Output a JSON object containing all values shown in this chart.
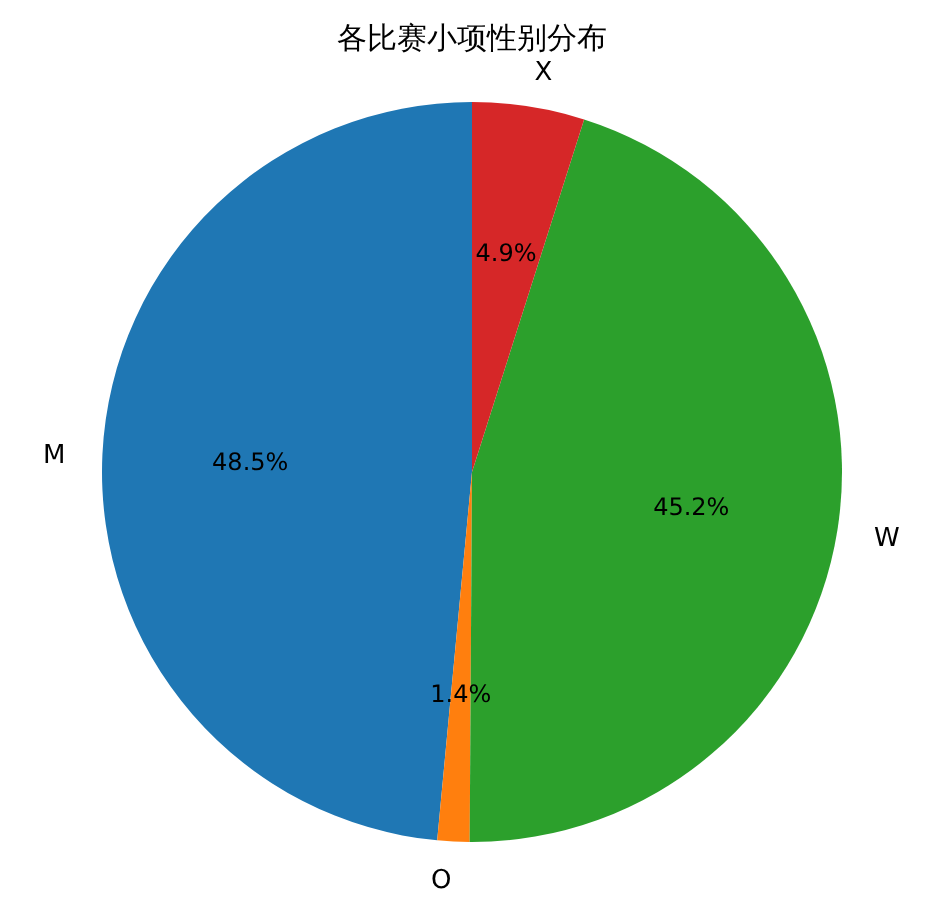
{
  "chart_data": {
    "type": "pie",
    "title": "各比赛小项性别分布",
    "categories": [
      "M",
      "O",
      "W",
      "X"
    ],
    "values": [
      48.5,
      1.4,
      45.2,
      4.9
    ],
    "colors": [
      "#1f77b4",
      "#ff7f0e",
      "#2ca02c",
      "#d62728"
    ],
    "value_labels": [
      "48.5%",
      "1.4%",
      "45.2%",
      "4.9%"
    ]
  }
}
